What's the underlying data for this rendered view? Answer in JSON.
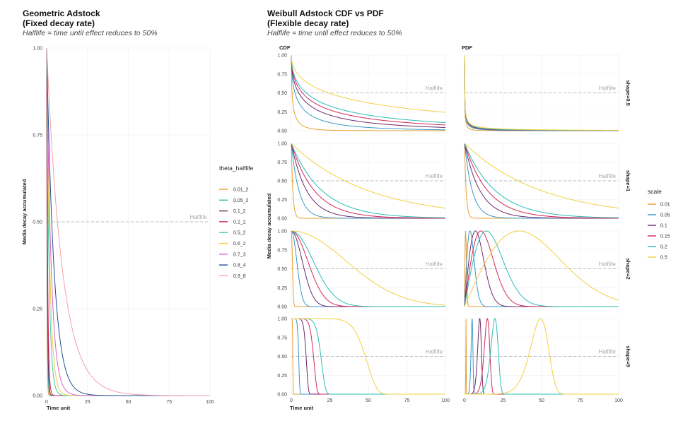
{
  "chart_data": [
    {
      "type": "line",
      "title": "Geometric Adstock",
      "subtitle_line2": "(Fixed decay rate)",
      "caption": "Halflife = time until effect reduces to 50%",
      "xlabel": "Time unit",
      "ylabel": "Media decay accumulated",
      "xlim": [
        0,
        100
      ],
      "ylim": [
        0,
        1
      ],
      "xticks": [
        "0",
        "25",
        "50",
        "75",
        "100"
      ],
      "yticks": [
        "0.00",
        "0.25",
        "0.50",
        "0.75",
        "1.00"
      ],
      "hline": {
        "y": 0.5,
        "label": "Halflife"
      },
      "legend_title": "theta_halflife",
      "legend_position": "right",
      "series": [
        {
          "name": "0.01_2",
          "theta": 0.01,
          "color": "#e8a030"
        },
        {
          "name": "0.05_2",
          "theta": 0.05,
          "color": "#2bb6b0"
        },
        {
          "name": "0.1_2",
          "theta": 0.1,
          "color": "#7a2860"
        },
        {
          "name": "0.2_2",
          "theta": 0.2,
          "color": "#d3205a"
        },
        {
          "name": "0.5_2",
          "theta": 0.5,
          "color": "#3ad0a0"
        },
        {
          "name": "0.6_2",
          "theta": 0.6,
          "color": "#f2d040"
        },
        {
          "name": "0.7_3",
          "theta": 0.7,
          "color": "#d860d0"
        },
        {
          "name": "0.8_4",
          "theta": 0.8,
          "color": "#1f4f8f"
        },
        {
          "name": "0.9_8",
          "theta": 0.9,
          "color": "#f4a0a8"
        }
      ]
    },
    {
      "type": "line",
      "title": "Weibull Adstock CDF vs PDF",
      "subtitle_line2": "(Flexible decay rate)",
      "caption": "Halflife = time until effect reduces to 50%",
      "xlabel": "Time unit",
      "ylabel": "Media decay accumulated",
      "xlim": [
        0,
        100
      ],
      "ylim": [
        0,
        1
      ],
      "xticks": [
        "0",
        "25",
        "50",
        "75",
        "100"
      ],
      "yticks": [
        "0.00",
        "0.25",
        "0.50",
        "0.75",
        "1.00"
      ],
      "hline": {
        "y": 0.5,
        "label": "Halflife"
      },
      "facet_columns": [
        "CDF",
        "PDF"
      ],
      "facet_rows": [
        {
          "label": "shape=0.5",
          "shape": 0.5
        },
        {
          "label": "shape=1",
          "shape": 1
        },
        {
          "label": "shape=2",
          "shape": 2
        },
        {
          "label": "shape=9",
          "shape": 9
        }
      ],
      "legend_title": "scale",
      "legend_position": "right",
      "series": [
        {
          "name": "0.01",
          "scale": 0.01,
          "color": "#e8a030"
        },
        {
          "name": "0.05",
          "scale": 0.05,
          "color": "#3a98c8"
        },
        {
          "name": "0.1",
          "scale": 0.1,
          "color": "#6a2a6a"
        },
        {
          "name": "0.15",
          "scale": 0.15,
          "color": "#d3285a"
        },
        {
          "name": "0.2",
          "scale": 0.2,
          "color": "#2bbcb8"
        },
        {
          "name": "0.5",
          "scale": 0.5,
          "color": "#f2d040"
        }
      ]
    }
  ]
}
